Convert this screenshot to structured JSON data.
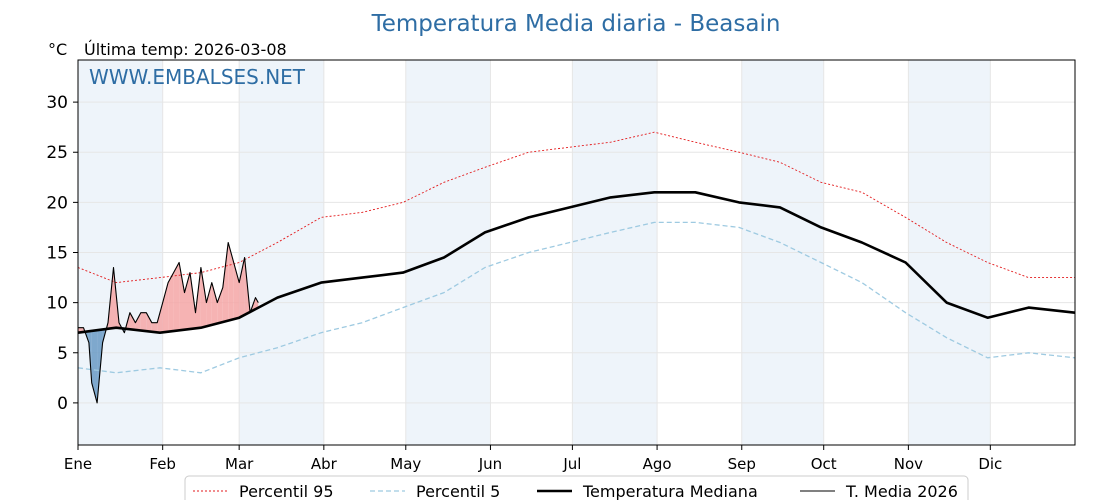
{
  "chart_data": {
    "type": "line",
    "title": "Temperatura Media diaria - Beasain",
    "unit_label": "°C",
    "subtitle": "Última temp: 2026-03-08",
    "watermark": "WWW.EMBALSES.NET",
    "ylim": [
      -4.2,
      34.2
    ],
    "yticks": [
      0,
      5,
      10,
      15,
      20,
      25,
      30
    ],
    "xlim": [
      1,
      366
    ],
    "months": [
      {
        "label": "Ene",
        "day": 1
      },
      {
        "label": "Feb",
        "day": 32
      },
      {
        "label": "Mar",
        "day": 60
      },
      {
        "label": "Abr",
        "day": 91
      },
      {
        "label": "May",
        "day": 121
      },
      {
        "label": "Jun",
        "day": 152
      },
      {
        "label": "Jul",
        "day": 182
      },
      {
        "label": "Ago",
        "day": 213
      },
      {
        "label": "Sep",
        "day": 244
      },
      {
        "label": "Oct",
        "day": 274
      },
      {
        "label": "Nov",
        "day": 305
      },
      {
        "label": "Dic",
        "day": 335
      }
    ],
    "grid": true,
    "legend_position": "bottom",
    "colors": {
      "p95": "#e31a1c",
      "p5": "#9ecae1",
      "median": "#000000",
      "current": "#000000",
      "above_fill": "#f4a6a6",
      "below_fill": "#6a9ac4",
      "shade": "#eef4fa",
      "title": "#2e6da4"
    },
    "series": [
      {
        "name": "Percentil 95",
        "key": "p95",
        "days": [
          1,
          15,
          31,
          46,
          60,
          74,
          90,
          105,
          120,
          135,
          150,
          166,
          181,
          196,
          212,
          227,
          243,
          258,
          273,
          288,
          304,
          319,
          334,
          349,
          366
        ],
        "values": [
          13.5,
          12,
          12.5,
          13,
          14,
          16,
          18.5,
          19,
          20,
          22,
          23.5,
          25,
          25.5,
          26,
          27,
          26,
          25,
          24,
          22,
          21,
          18.5,
          16,
          14,
          12.5,
          12.5
        ]
      },
      {
        "name": "Percentil 5",
        "key": "p5",
        "days": [
          1,
          15,
          31,
          46,
          60,
          74,
          90,
          105,
          120,
          135,
          150,
          166,
          181,
          196,
          212,
          227,
          243,
          258,
          273,
          288,
          304,
          319,
          334,
          349,
          366
        ],
        "values": [
          3.5,
          3,
          3.5,
          3,
          4.5,
          5.5,
          7,
          8,
          9.5,
          11,
          13.5,
          15,
          16,
          17,
          18,
          18,
          17.5,
          16,
          14,
          12,
          9,
          6.5,
          4.5,
          5,
          4.5
        ]
      },
      {
        "name": "Temperatura Mediana",
        "key": "median",
        "days": [
          1,
          15,
          31,
          46,
          60,
          74,
          90,
          105,
          120,
          135,
          150,
          166,
          181,
          196,
          212,
          227,
          243,
          258,
          273,
          288,
          304,
          319,
          334,
          349,
          366
        ],
        "values": [
          7,
          7.5,
          7,
          7.5,
          8.5,
          10.5,
          12,
          12.5,
          13,
          14.5,
          17,
          18.5,
          19.5,
          20.5,
          21,
          21,
          20,
          19.5,
          17.5,
          16,
          14,
          10,
          8.5,
          9.5,
          9
        ]
      },
      {
        "name": "T. Media 2026",
        "key": "current",
        "days": [
          1,
          3,
          5,
          6,
          8,
          10,
          12,
          14,
          16,
          18,
          20,
          22,
          24,
          26,
          28,
          30,
          32,
          34,
          36,
          38,
          40,
          42,
          44,
          46,
          48,
          50,
          52,
          54,
          56,
          58,
          60,
          62,
          64,
          66,
          67
        ],
        "values": [
          7.5,
          7.5,
          6,
          2,
          0,
          6,
          8,
          13.5,
          8,
          7,
          9,
          8,
          9,
          9,
          8,
          8,
          10,
          12,
          13,
          14,
          11,
          13,
          9,
          13.5,
          10,
          12,
          10,
          11.5,
          16,
          14,
          12,
          14.5,
          9,
          10.5,
          10
        ]
      }
    ]
  }
}
